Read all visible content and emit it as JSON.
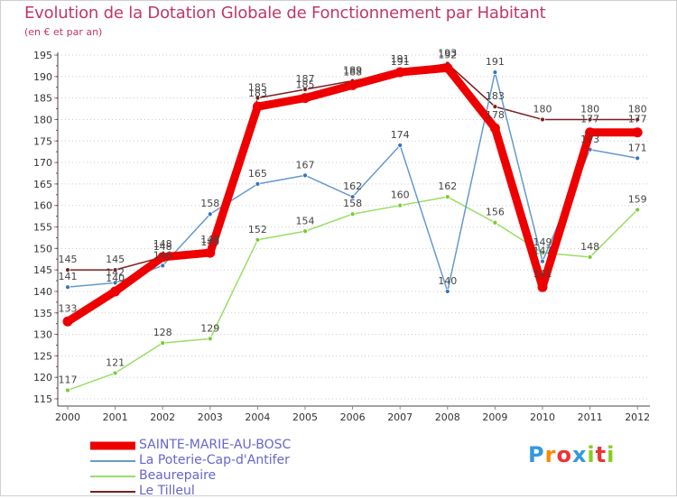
{
  "header": {
    "title": "Evolution de la Dotation Globale de Fonctionnement par Habitant",
    "subtitle": "(en € et par an)"
  },
  "chart_data": {
    "type": "line",
    "title": "Evolution de la Dotation Globale de Fonctionnement par Habitant",
    "subtitle": "(en € et par an)",
    "xlabel": "",
    "ylabel": "",
    "categories": [
      "2000",
      "2001",
      "2002",
      "2003",
      "2004",
      "2005",
      "2006",
      "2007",
      "2008",
      "2009",
      "2010",
      "2011",
      "2012"
    ],
    "ylim": [
      115,
      195
    ],
    "yticks": [
      115,
      120,
      125,
      130,
      135,
      140,
      145,
      150,
      155,
      160,
      165,
      170,
      175,
      180,
      185,
      190,
      195
    ],
    "grid": "horizontal dotted",
    "legend": "bottom-left",
    "series": [
      {
        "name": "Le Tilleul",
        "color": "#7a1f1f",
        "width": 1.5,
        "marker": 5,
        "values": [
          145,
          145,
          148,
          149,
          185,
          187,
          189,
          191,
          193,
          183,
          180,
          180,
          180
        ]
      },
      {
        "name": "Beaurepaire",
        "color": "#99dd66",
        "marker_color": "#77cc33",
        "width": 1.5,
        "marker": 5,
        "values": [
          117,
          121,
          128,
          129,
          152,
          154,
          158,
          160,
          162,
          156,
          149,
          148,
          159
        ]
      },
      {
        "name": "La Poterie-Cap-d'Antifer",
        "color": "#6699cc",
        "marker_color": "#3377bb",
        "width": 1.5,
        "marker": 5,
        "values": [
          141,
          142,
          146,
          158,
          165,
          167,
          162,
          174,
          140,
          191,
          147,
          173,
          171
        ]
      },
      {
        "name": "SAINTE-MARIE-AU-BOSC",
        "color": "#ee0000",
        "width": 9,
        "marker": 11,
        "values": [
          133,
          140,
          148,
          149,
          183,
          185,
          188,
          191,
          192,
          178,
          141,
          177,
          177
        ]
      }
    ]
  },
  "legend": {
    "items": [
      {
        "label": "SAINTE-MARIE-AU-BOSC",
        "color": "#ee0000"
      },
      {
        "label": "La Poterie-Cap-d'Antifer",
        "color": "#6699cc"
      },
      {
        "label": "Beaurepaire",
        "color": "#99dd66"
      },
      {
        "label": "Le Tilleul",
        "color": "#7a1f1f"
      }
    ]
  },
  "logo": {
    "letters": [
      "P",
      "r",
      "o",
      "x",
      "i",
      "t",
      "i"
    ],
    "colors": [
      "#3399dd",
      "#ff8800",
      "#ee3333",
      "#3399dd",
      "#88cc22",
      "#ee3333",
      "#88cc22"
    ]
  }
}
